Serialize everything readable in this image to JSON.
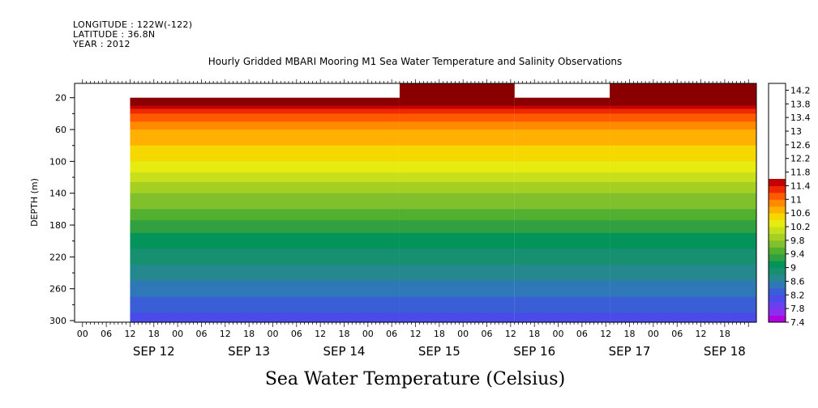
{
  "header": {
    "longitude": "LONGITUDE : 122W(-122)",
    "latitude": "LATITUDE : 36.8N",
    "year": "YEAR : 2012"
  },
  "chart_data": {
    "type": "heatmap",
    "title": "Hourly Gridded MBARI Mooring M1 Sea Water Temperature and Salinity Observations",
    "caption": "Sea Water Temperature (Celsius)",
    "ylabel": "DEPTH (m)",
    "y_ticks": [
      20,
      60,
      100,
      140,
      180,
      220,
      260,
      300
    ],
    "ylim": [
      302,
      2
    ],
    "hour_ticks": [
      "00",
      "06",
      "12",
      "18",
      "00",
      "06",
      "12",
      "18",
      "00",
      "06",
      "12",
      "18",
      "00",
      "06",
      "12",
      "18",
      "00",
      "06",
      "12",
      "18",
      "00",
      "06",
      "12",
      "18",
      "00",
      "06",
      "12",
      "18"
    ],
    "day_labels": [
      "SEP 12",
      "SEP 13",
      "SEP 14",
      "SEP 15",
      "SEP 16",
      "SEP 17",
      "SEP 18"
    ],
    "x_range_hours": [
      -8,
      164
    ],
    "colorbar": {
      "levels": [
        "14.2",
        "13.8",
        "13.4",
        "13",
        "12.6",
        "12.2",
        "11.8",
        "11.4",
        "11",
        "10.6",
        "10.2",
        "9.8",
        "9.4",
        "9",
        "8.6",
        "8.2",
        "7.8",
        "7.4"
      ],
      "min": 7.4,
      "max": 14.4,
      "step": 0.2
    },
    "coverage": [
      {
        "from_hour": 6,
        "to_hour": 74,
        "top_depth": 20
      },
      {
        "from_hour": 74,
        "to_hour": 103,
        "top_depth": 2
      },
      {
        "from_hour": 103,
        "to_hour": 127,
        "top_depth": 20
      },
      {
        "from_hour": 127,
        "to_hour": 164,
        "top_depth": 2
      }
    ],
    "temperature_profile": [
      {
        "depth": 2,
        "temp": 14.2
      },
      {
        "depth": 10,
        "temp": 12.8
      },
      {
        "depth": 20,
        "temp": 12.0
      },
      {
        "depth": 40,
        "temp": 11.2
      },
      {
        "depth": 60,
        "temp": 10.8
      },
      {
        "depth": 100,
        "temp": 10.4
      },
      {
        "depth": 140,
        "temp": 9.8
      },
      {
        "depth": 160,
        "temp": 9.6
      },
      {
        "depth": 180,
        "temp": 9.3
      },
      {
        "depth": 220,
        "temp": 8.9
      },
      {
        "depth": 260,
        "temp": 8.5
      },
      {
        "depth": 300,
        "temp": 8.1
      }
    ]
  }
}
